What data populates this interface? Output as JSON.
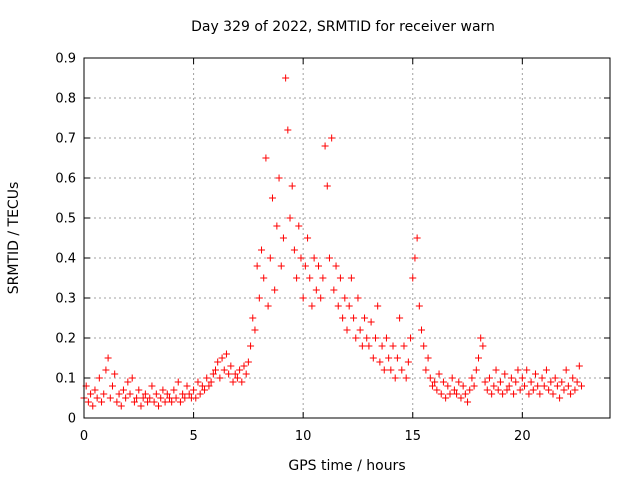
{
  "chart_data": {
    "type": "scatter",
    "title": "Day 329 of 2022, SRMTID for receiver warn",
    "xlabel": "GPS time / hours",
    "ylabel": "SRMTID / TECUs",
    "xlim": [
      0,
      24
    ],
    "ylim": [
      0,
      0.9
    ],
    "xticks": [
      0,
      5,
      10,
      15,
      20
    ],
    "yticks": [
      0,
      0.1,
      0.2,
      0.3,
      0.4,
      0.5,
      0.6,
      0.7,
      0.8,
      0.9
    ],
    "xtick_labels": [
      "0",
      "5",
      "10",
      "15",
      "20"
    ],
    "ytick_labels": [
      "0",
      "0.1",
      "0.2",
      "0.3",
      "0.4",
      "0.5",
      "0.6",
      "0.7",
      "0.8",
      "0.9"
    ],
    "grid": true,
    "marker": "plus",
    "color": "#ff0000",
    "series": [
      {
        "name": "SRMTID",
        "points": [
          [
            0.0,
            0.05
          ],
          [
            0.1,
            0.08
          ],
          [
            0.2,
            0.04
          ],
          [
            0.3,
            0.06
          ],
          [
            0.4,
            0.03
          ],
          [
            0.5,
            0.07
          ],
          [
            0.6,
            0.05
          ],
          [
            0.7,
            0.1
          ],
          [
            0.8,
            0.04
          ],
          [
            0.9,
            0.06
          ],
          [
            1.0,
            0.12
          ],
          [
            1.1,
            0.15
          ],
          [
            1.2,
            0.05
          ],
          [
            1.3,
            0.08
          ],
          [
            1.4,
            0.11
          ],
          [
            1.5,
            0.04
          ],
          [
            1.6,
            0.06
          ],
          [
            1.7,
            0.03
          ],
          [
            1.8,
            0.07
          ],
          [
            1.9,
            0.05
          ],
          [
            2.0,
            0.09
          ],
          [
            2.1,
            0.06
          ],
          [
            2.2,
            0.1
          ],
          [
            2.3,
            0.04
          ],
          [
            2.4,
            0.05
          ],
          [
            2.5,
            0.07
          ],
          [
            2.6,
            0.03
          ],
          [
            2.7,
            0.05
          ],
          [
            2.8,
            0.06
          ],
          [
            2.9,
            0.04
          ],
          [
            3.0,
            0.05
          ],
          [
            3.1,
            0.08
          ],
          [
            3.2,
            0.04
          ],
          [
            3.3,
            0.06
          ],
          [
            3.4,
            0.03
          ],
          [
            3.5,
            0.05
          ],
          [
            3.6,
            0.07
          ],
          [
            3.7,
            0.04
          ],
          [
            3.8,
            0.06
          ],
          [
            3.9,
            0.05
          ],
          [
            4.0,
            0.04
          ],
          [
            4.1,
            0.07
          ],
          [
            4.2,
            0.05
          ],
          [
            4.3,
            0.09
          ],
          [
            4.4,
            0.04
          ],
          [
            4.5,
            0.06
          ],
          [
            4.6,
            0.05
          ],
          [
            4.7,
            0.08
          ],
          [
            4.8,
            0.06
          ],
          [
            4.9,
            0.05
          ],
          [
            5.0,
            0.07
          ],
          [
            5.1,
            0.05
          ],
          [
            5.2,
            0.09
          ],
          [
            5.3,
            0.06
          ],
          [
            5.4,
            0.08
          ],
          [
            5.5,
            0.07
          ],
          [
            5.6,
            0.1
          ],
          [
            5.7,
            0.08
          ],
          [
            5.8,
            0.09
          ],
          [
            5.9,
            0.11
          ],
          [
            6.0,
            0.12
          ],
          [
            6.1,
            0.14
          ],
          [
            6.2,
            0.1
          ],
          [
            6.3,
            0.15
          ],
          [
            6.4,
            0.12
          ],
          [
            6.5,
            0.16
          ],
          [
            6.6,
            0.11
          ],
          [
            6.7,
            0.13
          ],
          [
            6.8,
            0.09
          ],
          [
            6.9,
            0.11
          ],
          [
            7.0,
            0.1
          ],
          [
            7.1,
            0.12
          ],
          [
            7.2,
            0.09
          ],
          [
            7.3,
            0.13
          ],
          [
            7.4,
            0.11
          ],
          [
            7.5,
            0.14
          ],
          [
            7.6,
            0.18
          ],
          [
            7.7,
            0.25
          ],
          [
            7.8,
            0.22
          ],
          [
            7.9,
            0.38
          ],
          [
            8.0,
            0.3
          ],
          [
            8.1,
            0.42
          ],
          [
            8.2,
            0.35
          ],
          [
            8.3,
            0.65
          ],
          [
            8.4,
            0.28
          ],
          [
            8.5,
            0.4
          ],
          [
            8.6,
            0.55
          ],
          [
            8.7,
            0.32
          ],
          [
            8.8,
            0.48
          ],
          [
            8.9,
            0.6
          ],
          [
            9.0,
            0.38
          ],
          [
            9.1,
            0.45
          ],
          [
            9.2,
            0.85
          ],
          [
            9.3,
            0.72
          ],
          [
            9.4,
            0.5
          ],
          [
            9.5,
            0.58
          ],
          [
            9.6,
            0.42
          ],
          [
            9.7,
            0.35
          ],
          [
            9.8,
            0.48
          ],
          [
            9.9,
            0.4
          ],
          [
            10.0,
            0.3
          ],
          [
            10.1,
            0.38
          ],
          [
            10.2,
            0.45
          ],
          [
            10.3,
            0.35
          ],
          [
            10.4,
            0.28
          ],
          [
            10.5,
            0.4
          ],
          [
            10.6,
            0.32
          ],
          [
            10.7,
            0.38
          ],
          [
            10.8,
            0.3
          ],
          [
            10.9,
            0.35
          ],
          [
            11.0,
            0.68
          ],
          [
            11.1,
            0.58
          ],
          [
            11.2,
            0.4
          ],
          [
            11.3,
            0.7
          ],
          [
            11.4,
            0.32
          ],
          [
            11.5,
            0.38
          ],
          [
            11.6,
            0.28
          ],
          [
            11.7,
            0.35
          ],
          [
            11.8,
            0.25
          ],
          [
            11.9,
            0.3
          ],
          [
            12.0,
            0.22
          ],
          [
            12.1,
            0.28
          ],
          [
            12.2,
            0.35
          ],
          [
            12.3,
            0.25
          ],
          [
            12.4,
            0.2
          ],
          [
            12.5,
            0.3
          ],
          [
            12.6,
            0.22
          ],
          [
            12.7,
            0.18
          ],
          [
            12.8,
            0.25
          ],
          [
            12.9,
            0.2
          ],
          [
            13.0,
            0.18
          ],
          [
            13.1,
            0.24
          ],
          [
            13.2,
            0.15
          ],
          [
            13.3,
            0.2
          ],
          [
            13.4,
            0.28
          ],
          [
            13.5,
            0.14
          ],
          [
            13.6,
            0.18
          ],
          [
            13.7,
            0.12
          ],
          [
            13.8,
            0.2
          ],
          [
            13.9,
            0.15
          ],
          [
            14.0,
            0.12
          ],
          [
            14.1,
            0.18
          ],
          [
            14.2,
            0.1
          ],
          [
            14.3,
            0.15
          ],
          [
            14.4,
            0.25
          ],
          [
            14.5,
            0.12
          ],
          [
            14.6,
            0.18
          ],
          [
            14.7,
            0.1
          ],
          [
            14.8,
            0.14
          ],
          [
            14.9,
            0.2
          ],
          [
            15.0,
            0.35
          ],
          [
            15.1,
            0.4
          ],
          [
            15.2,
            0.45
          ],
          [
            15.3,
            0.28
          ],
          [
            15.4,
            0.22
          ],
          [
            15.5,
            0.18
          ],
          [
            15.6,
            0.12
          ],
          [
            15.7,
            0.15
          ],
          [
            15.8,
            0.1
          ],
          [
            15.9,
            0.08
          ],
          [
            16.0,
            0.09
          ],
          [
            16.1,
            0.07
          ],
          [
            16.2,
            0.11
          ],
          [
            16.3,
            0.06
          ],
          [
            16.4,
            0.09
          ],
          [
            16.5,
            0.05
          ],
          [
            16.6,
            0.08
          ],
          [
            16.7,
            0.06
          ],
          [
            16.8,
            0.1
          ],
          [
            16.9,
            0.07
          ],
          [
            17.0,
            0.06
          ],
          [
            17.1,
            0.09
          ],
          [
            17.2,
            0.05
          ],
          [
            17.3,
            0.08
          ],
          [
            17.4,
            0.06
          ],
          [
            17.5,
            0.04
          ],
          [
            17.6,
            0.07
          ],
          [
            17.7,
            0.1
          ],
          [
            17.8,
            0.08
          ],
          [
            17.9,
            0.12
          ],
          [
            18.0,
            0.15
          ],
          [
            18.1,
            0.2
          ],
          [
            18.2,
            0.18
          ],
          [
            18.3,
            0.09
          ],
          [
            18.4,
            0.07
          ],
          [
            18.5,
            0.1
          ],
          [
            18.6,
            0.06
          ],
          [
            18.7,
            0.08
          ],
          [
            18.8,
            0.12
          ],
          [
            18.9,
            0.07
          ],
          [
            19.0,
            0.09
          ],
          [
            19.1,
            0.06
          ],
          [
            19.2,
            0.11
          ],
          [
            19.3,
            0.07
          ],
          [
            19.4,
            0.08
          ],
          [
            19.5,
            0.1
          ],
          [
            19.6,
            0.06
          ],
          [
            19.7,
            0.09
          ],
          [
            19.8,
            0.12
          ],
          [
            19.9,
            0.07
          ],
          [
            20.0,
            0.1
          ],
          [
            20.1,
            0.08
          ],
          [
            20.2,
            0.12
          ],
          [
            20.3,
            0.06
          ],
          [
            20.4,
            0.09
          ],
          [
            20.5,
            0.07
          ],
          [
            20.6,
            0.11
          ],
          [
            20.7,
            0.08
          ],
          [
            20.8,
            0.06
          ],
          [
            20.9,
            0.1
          ],
          [
            21.0,
            0.08
          ],
          [
            21.1,
            0.12
          ],
          [
            21.2,
            0.07
          ],
          [
            21.3,
            0.09
          ],
          [
            21.4,
            0.06
          ],
          [
            21.5,
            0.1
          ],
          [
            21.6,
            0.08
          ],
          [
            21.7,
            0.05
          ],
          [
            21.8,
            0.09
          ],
          [
            21.9,
            0.07
          ],
          [
            22.0,
            0.12
          ],
          [
            22.1,
            0.08
          ],
          [
            22.2,
            0.06
          ],
          [
            22.3,
            0.1
          ],
          [
            22.4,
            0.07
          ],
          [
            22.5,
            0.09
          ],
          [
            22.6,
            0.13
          ],
          [
            22.7,
            0.08
          ]
        ]
      }
    ]
  }
}
